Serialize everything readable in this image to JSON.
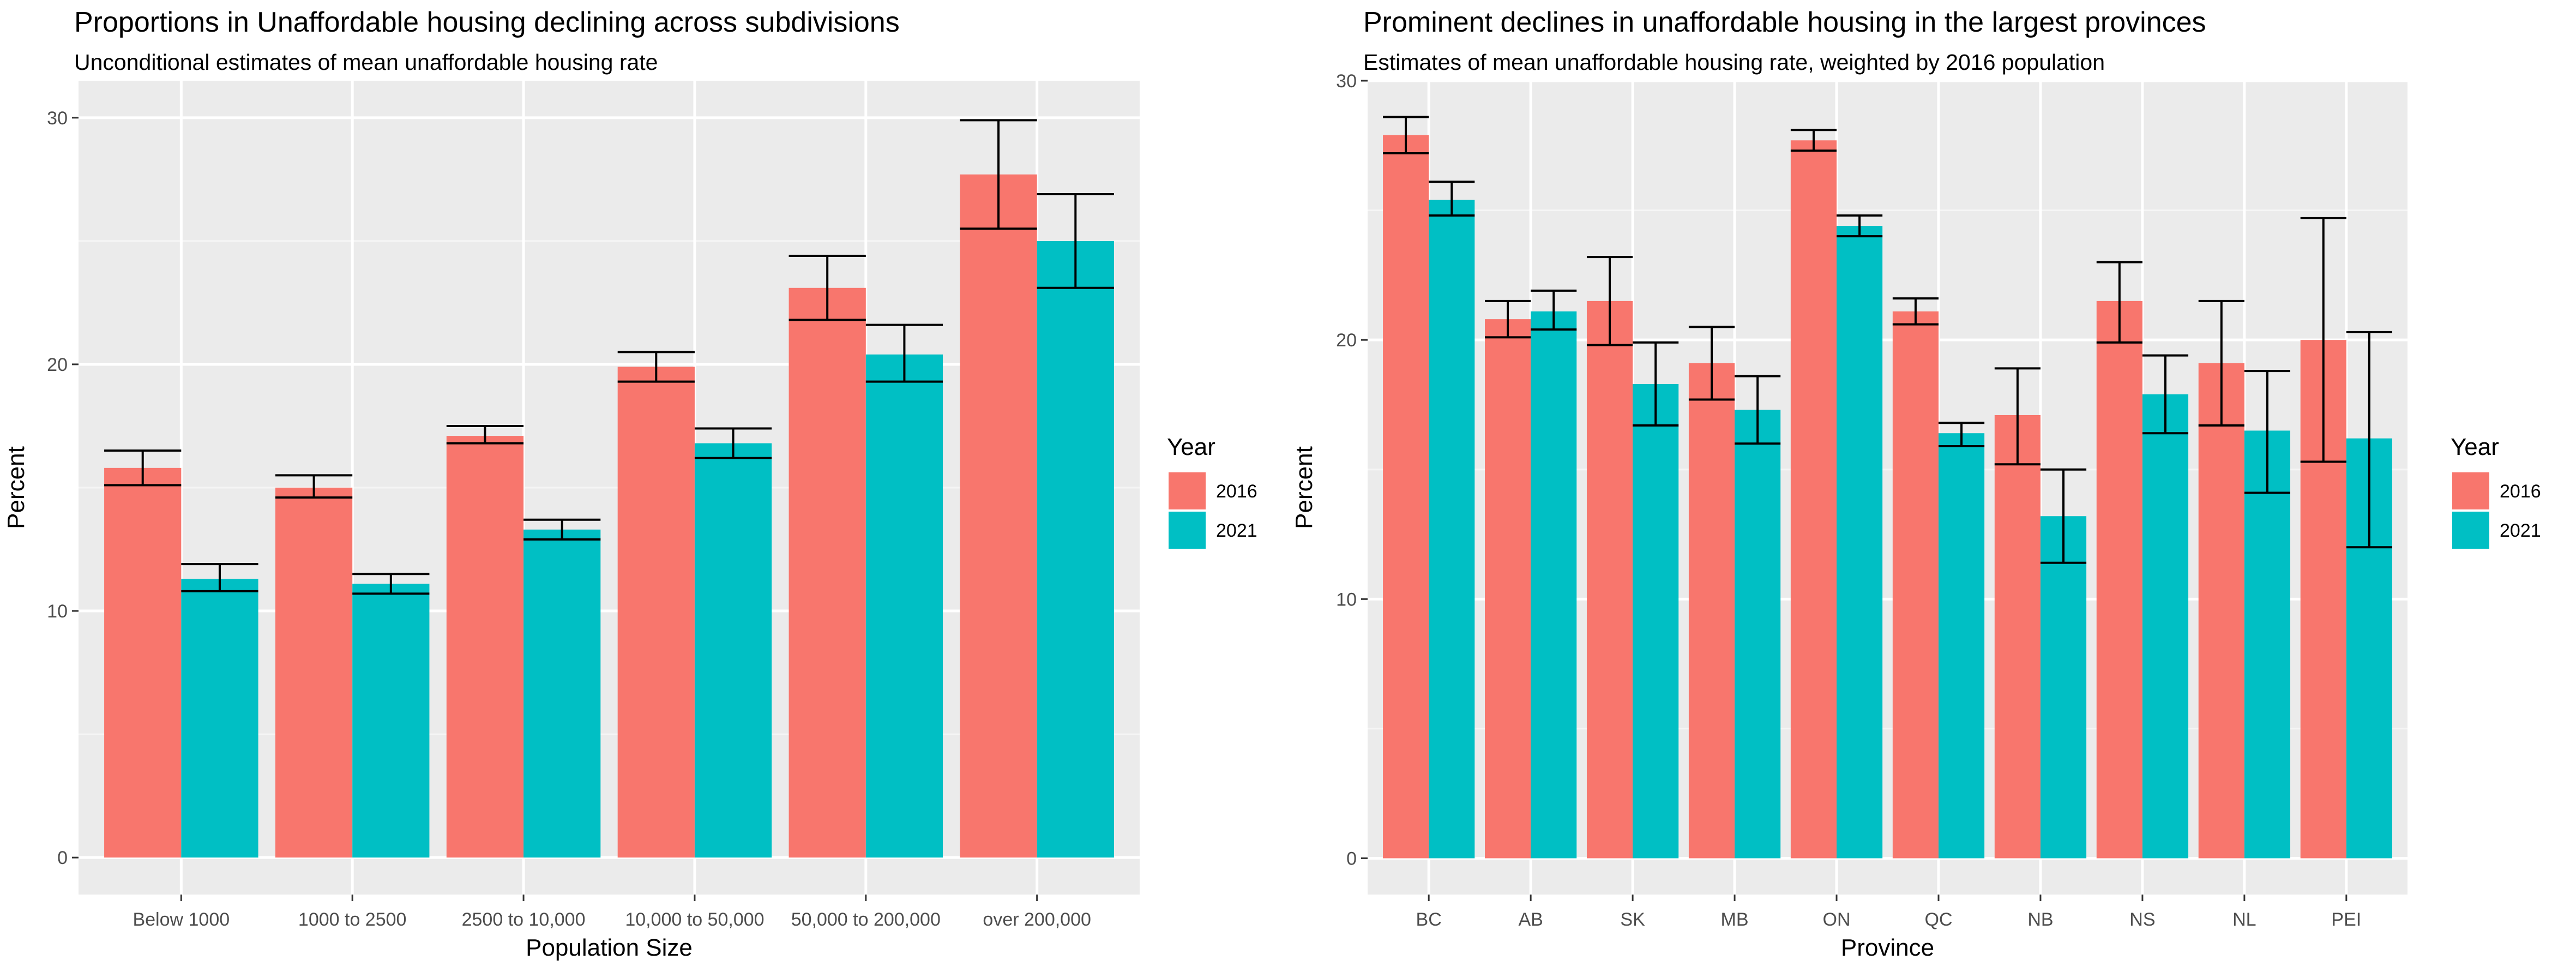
{
  "chart_data": [
    {
      "type": "bar",
      "title": "Proportions in Unaffordable housing declining across subdivisions",
      "subtitle": "Unconditional estimates of mean unaffordable housing rate",
      "xlabel": "Population Size",
      "ylabel": "Percent",
      "ylim": [
        -1.5,
        31.5
      ],
      "yticks": [
        0,
        10,
        20,
        30
      ],
      "grid": true,
      "legend": {
        "title": "Year",
        "position": "right"
      },
      "categories": [
        "Below 1000",
        "1000 to 2500",
        "2500 to 10,000",
        "10,000 to 50,000",
        "50,000 to 200,000",
        "over 200,000"
      ],
      "series": [
        {
          "name": "2016",
          "color": "#F8766D",
          "values": [
            15.8,
            15.0,
            17.1,
            19.9,
            23.1,
            27.7
          ],
          "err_low": [
            15.1,
            14.6,
            16.8,
            19.3,
            21.8,
            25.5
          ],
          "err_high": [
            16.5,
            15.5,
            17.5,
            20.5,
            24.4,
            29.9
          ]
        },
        {
          "name": "2021",
          "color": "#00BFC4",
          "values": [
            11.3,
            11.1,
            13.3,
            16.8,
            20.4,
            25.0
          ],
          "err_low": [
            10.8,
            10.7,
            12.9,
            16.2,
            19.3,
            23.1
          ],
          "err_high": [
            11.9,
            11.5,
            13.7,
            17.4,
            21.6,
            26.9
          ]
        }
      ]
    },
    {
      "type": "bar",
      "title": "Prominent declines in unaffordable housing in the largest provinces",
      "subtitle": "Estimates of mean unaffordable housing rate, weighted by 2016 population",
      "xlabel": "Province",
      "ylabel": "Percent",
      "ylim": [
        -1.4,
        30.0
      ],
      "yticks": [
        0,
        10,
        20,
        30
      ],
      "grid": true,
      "legend": {
        "title": "Year",
        "position": "right"
      },
      "categories": [
        "BC",
        "AB",
        "SK",
        "MB",
        "ON",
        "QC",
        "NB",
        "NS",
        "NL",
        "PEI"
      ],
      "series": [
        {
          "name": "2016",
          "color": "#F8766D",
          "values": [
            27.9,
            20.8,
            21.5,
            19.1,
            27.7,
            21.1,
            17.1,
            21.5,
            19.1,
            20.0
          ],
          "err_low": [
            27.2,
            20.1,
            19.8,
            17.7,
            27.3,
            20.6,
            15.2,
            19.9,
            16.7,
            15.3
          ],
          "err_high": [
            28.6,
            21.5,
            23.2,
            20.5,
            28.1,
            21.6,
            18.9,
            23.0,
            21.5,
            24.7
          ]
        },
        {
          "name": "2021",
          "color": "#00BFC4",
          "values": [
            25.4,
            21.1,
            18.3,
            17.3,
            24.4,
            16.4,
            13.2,
            17.9,
            16.5,
            16.2
          ],
          "err_low": [
            24.8,
            20.4,
            16.7,
            16.0,
            24.0,
            15.9,
            11.4,
            16.4,
            14.1,
            12.0
          ],
          "err_high": [
            26.1,
            21.9,
            19.9,
            18.6,
            24.8,
            16.8,
            15.0,
            19.4,
            18.8,
            20.3
          ]
        }
      ]
    }
  ]
}
